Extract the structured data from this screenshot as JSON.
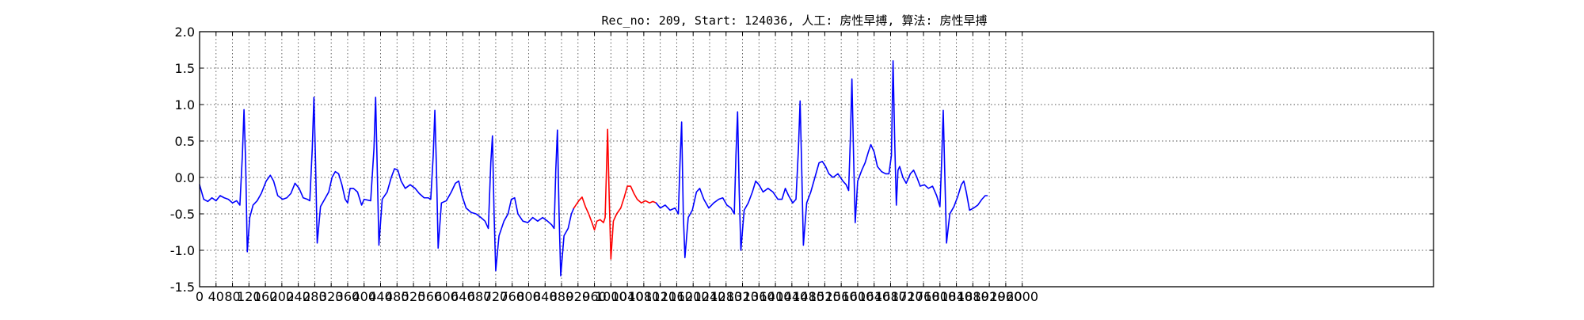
{
  "chart_data": {
    "type": "line",
    "title": "Rec_no: 209, Start: 124036, 人工: 房性早搏, 算法: 房性早搏",
    "xlabel": "",
    "ylabel": "",
    "xlim": [
      0,
      3000
    ],
    "ylim": [
      -1.5,
      2.0
    ],
    "grid": true,
    "x_tick_step": 40,
    "x_tick_last": 2000,
    "y_ticks": [
      -1.5,
      -1.0,
      -0.5,
      0.0,
      0.5,
      1.0,
      1.5,
      2.0
    ],
    "y_tick_labels": [
      "-1.5",
      "-1.0",
      "-0.5",
      "0.0",
      "0.5",
      "1.0",
      "1.5",
      "2.0"
    ],
    "x_tick_labels": [
      "0",
      "40",
      "80",
      "120",
      "160",
      "200",
      "240",
      "280",
      "320",
      "360",
      "400",
      "440",
      "480",
      "520",
      "560",
      "600",
      "640",
      "680",
      "720",
      "760",
      "800",
      "840",
      "880",
      "920",
      "960",
      "1000",
      "1040",
      "1080",
      "1120",
      "1160",
      "1200",
      "1240",
      "1280",
      "1320",
      "1360",
      "1400",
      "1440",
      "1480",
      "1520",
      "1560",
      "1600",
      "1640",
      "1680",
      "1720",
      "1760",
      "1800",
      "1840",
      "1880",
      "1920",
      "1960",
      "2000"
    ],
    "highlight_range": [
      910,
      1110
    ],
    "colors": {
      "normal": "#0000ff",
      "highlight": "#ff0000",
      "grid": "#555555"
    },
    "series": [
      {
        "name": "",
        "color": "#0000ff",
        "points": [
          [
            0,
            -0.1
          ],
          [
            10,
            -0.3
          ],
          [
            20,
            -0.33
          ],
          [
            30,
            -0.28
          ],
          [
            40,
            -0.32
          ],
          [
            50,
            -0.25
          ],
          [
            60,
            -0.28
          ],
          [
            70,
            -0.3
          ],
          [
            80,
            -0.35
          ],
          [
            90,
            -0.32
          ],
          [
            98,
            -0.38
          ],
          [
            104,
            0.3
          ],
          [
            108,
            0.93
          ],
          [
            112,
            0.2
          ],
          [
            116,
            -1.02
          ],
          [
            122,
            -0.55
          ],
          [
            130,
            -0.38
          ],
          [
            140,
            -0.32
          ],
          [
            150,
            -0.22
          ],
          [
            162,
            -0.05
          ],
          [
            172,
            0.03
          ],
          [
            180,
            -0.05
          ],
          [
            190,
            -0.25
          ],
          [
            202,
            -0.3
          ],
          [
            212,
            -0.28
          ],
          [
            222,
            -0.22
          ],
          [
            232,
            -0.08
          ],
          [
            242,
            -0.15
          ],
          [
            252,
            -0.28
          ],
          [
            262,
            -0.3
          ],
          [
            268,
            -0.32
          ],
          [
            274,
            0.4
          ],
          [
            278,
            1.1
          ],
          [
            282,
            0.2
          ],
          [
            286,
            -0.9
          ],
          [
            294,
            -0.4
          ],
          [
            304,
            -0.3
          ],
          [
            314,
            -0.2
          ],
          [
            322,
            0.0
          ],
          [
            330,
            0.08
          ],
          [
            338,
            0.05
          ],
          [
            346,
            -0.1
          ],
          [
            354,
            -0.3
          ],
          [
            360,
            -0.35
          ],
          [
            366,
            -0.15
          ],
          [
            374,
            -0.15
          ],
          [
            384,
            -0.2
          ],
          [
            394,
            -0.38
          ],
          [
            400,
            -0.3
          ],
          [
            416,
            -0.32
          ],
          [
            424,
            0.4
          ],
          [
            428,
            1.1
          ],
          [
            432,
            0.1
          ],
          [
            436,
            -0.93
          ],
          [
            444,
            -0.3
          ],
          [
            456,
            -0.2
          ],
          [
            466,
            0.0
          ],
          [
            474,
            0.12
          ],
          [
            482,
            0.1
          ],
          [
            490,
            -0.05
          ],
          [
            500,
            -0.15
          ],
          [
            512,
            -0.1
          ],
          [
            524,
            -0.15
          ],
          [
            534,
            -0.22
          ],
          [
            546,
            -0.28
          ],
          [
            556,
            -0.28
          ],
          [
            562,
            -0.3
          ],
          [
            568,
            0.3
          ],
          [
            572,
            0.92
          ],
          [
            576,
            0.1
          ],
          [
            580,
            -0.97
          ],
          [
            588,
            -0.35
          ],
          [
            600,
            -0.32
          ],
          [
            612,
            -0.2
          ],
          [
            622,
            -0.08
          ],
          [
            630,
            -0.05
          ],
          [
            638,
            -0.25
          ],
          [
            648,
            -0.42
          ],
          [
            660,
            -0.48
          ],
          [
            672,
            -0.5
          ],
          [
            684,
            -0.55
          ],
          [
            694,
            -0.6
          ],
          [
            702,
            -0.7
          ],
          [
            708,
            0.2
          ],
          [
            712,
            0.57
          ],
          [
            716,
            -0.5
          ],
          [
            720,
            -1.28
          ],
          [
            728,
            -0.8
          ],
          [
            740,
            -0.6
          ],
          [
            750,
            -0.5
          ],
          [
            758,
            -0.3
          ],
          [
            766,
            -0.28
          ],
          [
            774,
            -0.5
          ],
          [
            786,
            -0.6
          ],
          [
            798,
            -0.62
          ],
          [
            810,
            -0.55
          ],
          [
            822,
            -0.6
          ],
          [
            834,
            -0.55
          ],
          [
            846,
            -0.6
          ],
          [
            856,
            -0.65
          ],
          [
            862,
            -0.7
          ],
          [
            866,
            0.1
          ],
          [
            870,
            0.65
          ],
          [
            874,
            -0.5
          ],
          [
            878,
            -1.35
          ],
          [
            886,
            -0.8
          ],
          [
            896,
            -0.7
          ],
          [
            904,
            -0.5
          ],
          [
            910,
            -0.42
          ]
        ]
      },
      {
        "name": "",
        "color": "#ff0000",
        "points": [
          [
            910,
            -0.42
          ],
          [
            922,
            -0.32
          ],
          [
            930,
            -0.27
          ],
          [
            938,
            -0.4
          ],
          [
            946,
            -0.5
          ],
          [
            954,
            -0.62
          ],
          [
            960,
            -0.72
          ],
          [
            966,
            -0.6
          ],
          [
            974,
            -0.58
          ],
          [
            982,
            -0.62
          ],
          [
            986,
            -0.55
          ],
          [
            990,
            0.25
          ],
          [
            992,
            0.66
          ],
          [
            996,
            -0.3
          ],
          [
            1000,
            -1.12
          ],
          [
            1006,
            -0.6
          ],
          [
            1014,
            -0.5
          ],
          [
            1024,
            -0.42
          ],
          [
            1032,
            -0.28
          ],
          [
            1040,
            -0.12
          ],
          [
            1048,
            -0.12
          ],
          [
            1056,
            -0.22
          ],
          [
            1064,
            -0.3
          ],
          [
            1074,
            -0.35
          ],
          [
            1084,
            -0.32
          ],
          [
            1094,
            -0.35
          ],
          [
            1102,
            -0.33
          ],
          [
            1110,
            -0.35
          ]
        ]
      },
      {
        "name": "",
        "color": "#0000ff",
        "points": [
          [
            1110,
            -0.35
          ],
          [
            1120,
            -0.42
          ],
          [
            1132,
            -0.38
          ],
          [
            1144,
            -0.45
          ],
          [
            1156,
            -0.42
          ],
          [
            1164,
            -0.5
          ],
          [
            1168,
            0.2
          ],
          [
            1172,
            0.76
          ],
          [
            1176,
            -0.5
          ],
          [
            1180,
            -1.1
          ],
          [
            1188,
            -0.55
          ],
          [
            1198,
            -0.45
          ],
          [
            1208,
            -0.2
          ],
          [
            1216,
            -0.15
          ],
          [
            1226,
            -0.3
          ],
          [
            1238,
            -0.42
          ],
          [
            1250,
            -0.35
          ],
          [
            1262,
            -0.3
          ],
          [
            1272,
            -0.28
          ],
          [
            1282,
            -0.38
          ],
          [
            1292,
            -0.42
          ],
          [
            1300,
            -0.5
          ],
          [
            1304,
            0.3
          ],
          [
            1308,
            0.9
          ],
          [
            1312,
            -0.2
          ],
          [
            1316,
            -1.0
          ],
          [
            1324,
            -0.45
          ],
          [
            1334,
            -0.35
          ],
          [
            1344,
            -0.2
          ],
          [
            1352,
            -0.05
          ],
          [
            1360,
            -0.1
          ],
          [
            1370,
            -0.2
          ],
          [
            1382,
            -0.15
          ],
          [
            1394,
            -0.2
          ],
          [
            1406,
            -0.3
          ],
          [
            1416,
            -0.3
          ],
          [
            1424,
            -0.15
          ],
          [
            1432,
            -0.25
          ],
          [
            1442,
            -0.35
          ],
          [
            1450,
            -0.3
          ],
          [
            1456,
            0.4
          ],
          [
            1460,
            1.05
          ],
          [
            1464,
            0.1
          ],
          [
            1468,
            -0.93
          ],
          [
            1476,
            -0.35
          ],
          [
            1486,
            -0.2
          ],
          [
            1496,
            0.0
          ],
          [
            1506,
            0.2
          ],
          [
            1514,
            0.22
          ],
          [
            1522,
            0.15
          ],
          [
            1530,
            0.05
          ],
          [
            1540,
            0.0
          ],
          [
            1552,
            0.05
          ],
          [
            1564,
            -0.05
          ],
          [
            1572,
            -0.1
          ],
          [
            1578,
            -0.18
          ],
          [
            1582,
            0.5
          ],
          [
            1586,
            1.35
          ],
          [
            1590,
            0.3
          ],
          [
            1594,
            -0.62
          ],
          [
            1600,
            -0.05
          ],
          [
            1610,
            0.1
          ],
          [
            1618,
            0.2
          ],
          [
            1626,
            0.35
          ],
          [
            1632,
            0.45
          ],
          [
            1640,
            0.35
          ],
          [
            1648,
            0.15
          ],
          [
            1658,
            0.08
          ],
          [
            1668,
            0.05
          ],
          [
            1676,
            0.05
          ],
          [
            1682,
            0.3
          ],
          [
            1686,
            1.6
          ],
          [
            1690,
            0.5
          ],
          [
            1694,
            -0.38
          ],
          [
            1698,
            0.1
          ],
          [
            1702,
            0.15
          ],
          [
            1710,
            0.0
          ],
          [
            1718,
            -0.08
          ],
          [
            1728,
            0.05
          ],
          [
            1736,
            0.1
          ],
          [
            1744,
            0.0
          ],
          [
            1752,
            -0.12
          ],
          [
            1762,
            -0.1
          ],
          [
            1772,
            -0.15
          ],
          [
            1782,
            -0.12
          ],
          [
            1792,
            -0.25
          ],
          [
            1800,
            -0.4
          ],
          [
            1804,
            0.2
          ],
          [
            1808,
            0.92
          ],
          [
            1812,
            0.0
          ],
          [
            1816,
            -0.9
          ],
          [
            1824,
            -0.5
          ],
          [
            1834,
            -0.4
          ],
          [
            1844,
            -0.25
          ],
          [
            1852,
            -0.1
          ],
          [
            1858,
            -0.05
          ],
          [
            1864,
            -0.2
          ],
          [
            1872,
            -0.45
          ],
          [
            1882,
            -0.42
          ],
          [
            1892,
            -0.38
          ],
          [
            1902,
            -0.3
          ],
          [
            1910,
            -0.25
          ],
          [
            1915,
            -0.25
          ]
        ]
      }
    ]
  }
}
